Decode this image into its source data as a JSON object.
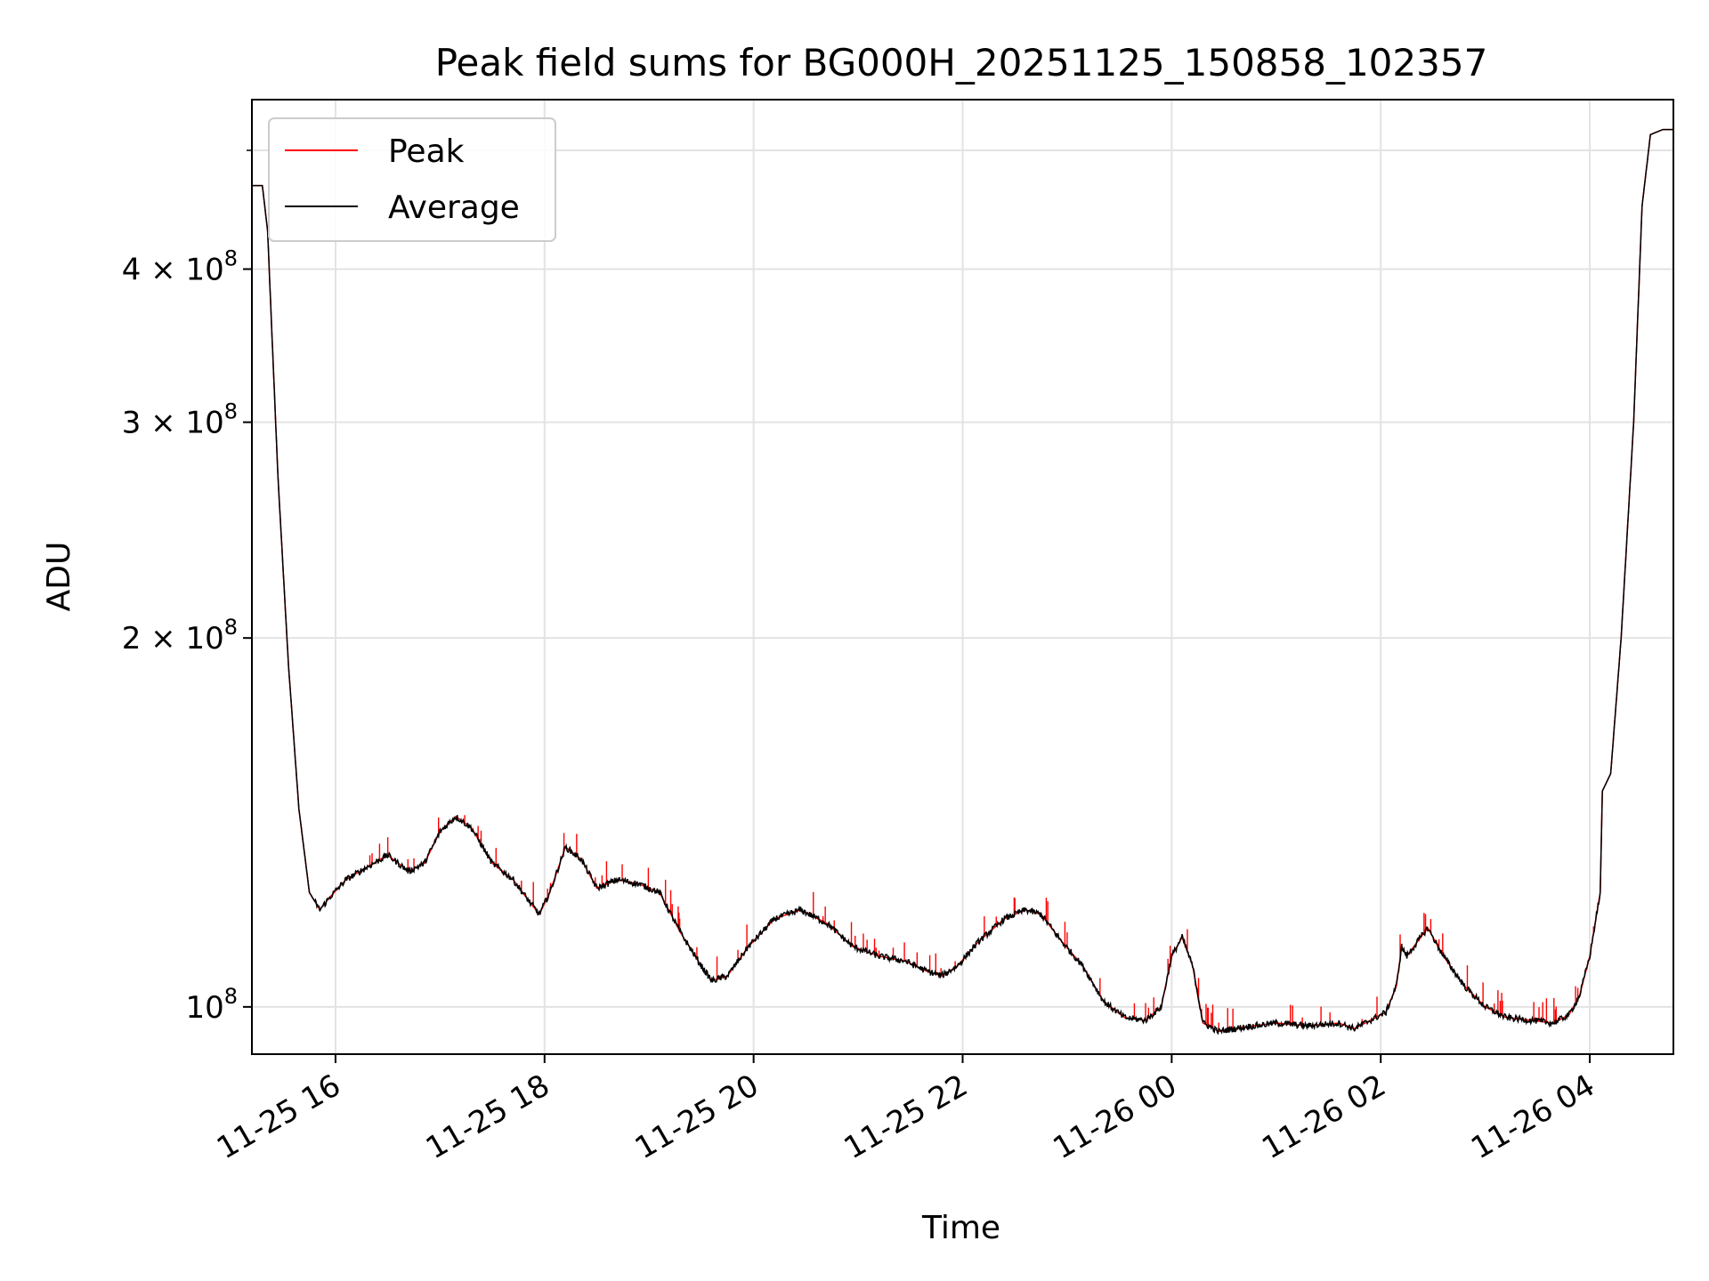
{
  "chart_data": {
    "type": "line",
    "title": "Peak field sums for BG000H_20251125_150858_102357",
    "xlabel": "Time",
    "ylabel": "ADU",
    "yscale": "log",
    "xlim_hours": [
      15.2,
      28.8
    ],
    "ylim": [
      91500000,
      550000000
    ],
    "grid": true,
    "legend_position": "top-left",
    "x_ticks": [
      {
        "hours": 16,
        "label": "11-25 16"
      },
      {
        "hours": 18,
        "label": "11-25 18"
      },
      {
        "hours": 20,
        "label": "11-25 20"
      },
      {
        "hours": 22,
        "label": "11-25 22"
      },
      {
        "hours": 24,
        "label": "11-26 00"
      },
      {
        "hours": 26,
        "label": "11-26 02"
      },
      {
        "hours": 28,
        "label": "11-26 04"
      }
    ],
    "y_ticks": [
      {
        "value": 100000000,
        "mantissa": "",
        "exponent": "8"
      },
      {
        "value": 200000000,
        "mantissa": "2",
        "exponent": "8"
      },
      {
        "value": 300000000,
        "mantissa": "3",
        "exponent": "8"
      },
      {
        "value": 400000000,
        "mantissa": "4",
        "exponent": "8"
      }
    ],
    "y_minor_ticks": [
      500000000
    ],
    "series": [
      {
        "name": "Peak",
        "color": "#ff0000"
      },
      {
        "name": "Average",
        "color": "#000000"
      }
    ],
    "average_points": [
      [
        15.15,
        468000000
      ],
      [
        15.3,
        468000000
      ],
      [
        15.35,
        430000000
      ],
      [
        15.45,
        270000000
      ],
      [
        15.55,
        190000000
      ],
      [
        15.65,
        145000000
      ],
      [
        15.75,
        124000000
      ],
      [
        15.85,
        120000000
      ],
      [
        15.95,
        123000000
      ],
      [
        16.1,
        127000000
      ],
      [
        16.3,
        130000000
      ],
      [
        16.5,
        133000000
      ],
      [
        16.7,
        129000000
      ],
      [
        16.85,
        131000000
      ],
      [
        17.0,
        139000000
      ],
      [
        17.15,
        143000000
      ],
      [
        17.3,
        140000000
      ],
      [
        17.5,
        131000000
      ],
      [
        17.7,
        127000000
      ],
      [
        17.85,
        122000000
      ],
      [
        17.95,
        119000000
      ],
      [
        18.05,
        124000000
      ],
      [
        18.2,
        135000000
      ],
      [
        18.35,
        132000000
      ],
      [
        18.5,
        125000000
      ],
      [
        18.7,
        127000000
      ],
      [
        18.9,
        126000000
      ],
      [
        19.1,
        124000000
      ],
      [
        19.3,
        115000000
      ],
      [
        19.5,
        108000000
      ],
      [
        19.6,
        105000000
      ],
      [
        19.75,
        106000000
      ],
      [
        19.95,
        112000000
      ],
      [
        20.2,
        118000000
      ],
      [
        20.45,
        120000000
      ],
      [
        20.7,
        117000000
      ],
      [
        20.95,
        112000000
      ],
      [
        21.2,
        110000000
      ],
      [
        21.45,
        109000000
      ],
      [
        21.65,
        107000000
      ],
      [
        21.8,
        106000000
      ],
      [
        21.95,
        108000000
      ],
      [
        22.15,
        113000000
      ],
      [
        22.4,
        118000000
      ],
      [
        22.6,
        120000000
      ],
      [
        22.75,
        119000000
      ],
      [
        22.95,
        113000000
      ],
      [
        23.15,
        108000000
      ],
      [
        23.35,
        101000000
      ],
      [
        23.55,
        98000000
      ],
      [
        23.75,
        97500000
      ],
      [
        23.9,
        100000000
      ],
      [
        24.0,
        110000000
      ],
      [
        24.1,
        114000000
      ],
      [
        24.2,
        108000000
      ],
      [
        24.3,
        97000000
      ],
      [
        24.45,
        95500000
      ],
      [
        24.7,
        96300000
      ],
      [
        25.0,
        97000000
      ],
      [
        25.3,
        96500000
      ],
      [
        25.6,
        97000000
      ],
      [
        25.75,
        96000000
      ],
      [
        25.9,
        97500000
      ],
      [
        26.05,
        99000000
      ],
      [
        26.15,
        104000000
      ],
      [
        26.2,
        112000000
      ],
      [
        26.25,
        110000000
      ],
      [
        26.35,
        113000000
      ],
      [
        26.45,
        116000000
      ],
      [
        26.6,
        110000000
      ],
      [
        26.8,
        104000000
      ],
      [
        27.0,
        100000000
      ],
      [
        27.2,
        98000000
      ],
      [
        27.45,
        97500000
      ],
      [
        27.65,
        97000000
      ],
      [
        27.8,
        98500000
      ],
      [
        27.9,
        102000000
      ],
      [
        28.0,
        110000000
      ],
      [
        28.1,
        124000000
      ],
      [
        28.12,
        150000000
      ],
      [
        28.2,
        155000000
      ],
      [
        28.3,
        200000000
      ],
      [
        28.42,
        300000000
      ],
      [
        28.5,
        450000000
      ],
      [
        28.58,
        515000000
      ],
      [
        28.7,
        520000000
      ],
      [
        28.8,
        520000000
      ]
    ]
  },
  "legend": {
    "peak_label": "Peak",
    "average_label": "Average"
  }
}
